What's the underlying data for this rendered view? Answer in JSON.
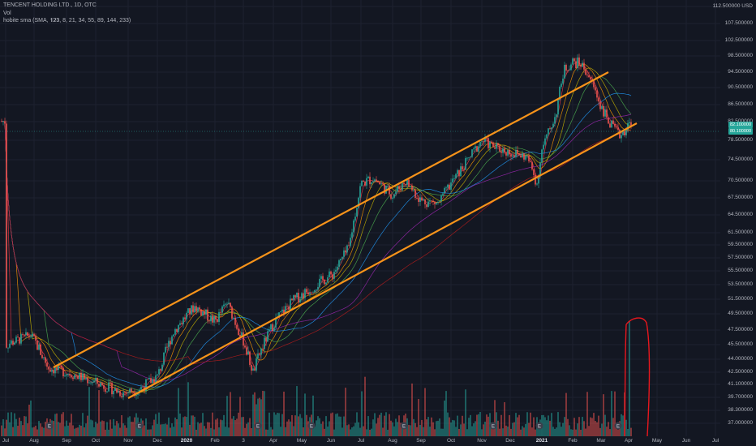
{
  "legend": {
    "symbol_line": "TENCENT HOLDING LTD., 1D, OTC",
    "vol_label": "Vol",
    "indicator_line": "hobite sma (SMA, 𝟏𝟐𝟑, 8, 21, 34, 55, 89, 144, 233)"
  },
  "axis": {
    "currency": "USD",
    "y_ticks": [
      "112.500000",
      "107.500000",
      "102.500000",
      "98.500000",
      "94.500000",
      "90.500000",
      "86.500000",
      "82.500000",
      "78.500000",
      "74.500000",
      "70.500000",
      "67.500000",
      "64.500000",
      "61.500000",
      "59.500000",
      "57.500000",
      "55.500000",
      "53.500000",
      "51.500000",
      "49.500000",
      "47.500000",
      "45.500000",
      "44.000000",
      "42.500000",
      "41.100000",
      "39.700000",
      "38.300000",
      "37.000000"
    ],
    "x_ticks": [
      "Jul",
      "Aug",
      "Sep",
      "Oct",
      "Nov",
      "Dec",
      "2020",
      "Feb",
      "3",
      "Apr",
      "May",
      "Jun",
      "Jul",
      "Aug",
      "Sep",
      "Oct",
      "Nov",
      "Dec",
      "2021",
      "Feb",
      "Mar",
      "Apr",
      "May",
      "Jun",
      "Jul"
    ]
  },
  "price_tags": [
    "82.100000",
    "80.100000"
  ],
  "colors": {
    "background": "#131722",
    "up_candle": "#26a69a",
    "down_candle": "#ef5350",
    "channel": "#f7931a",
    "annotation": "#e8171d",
    "ma_colors": [
      "#f23645",
      "#ff9800",
      "#c8b400",
      "#4caf50",
      "#2196f3",
      "#9c27b0",
      "#b71c1c"
    ]
  },
  "chart_data": {
    "type": "candlestick",
    "title": "TENCENT HOLDING LTD., 1D, OTC",
    "ylim": [
      37,
      112.5
    ],
    "scale": "log",
    "anchors": [
      {
        "x": "Jul",
        "y": 45.5
      },
      {
        "x": "Aug",
        "y": 46.5
      },
      {
        "x": "Sep",
        "y": 42.5
      },
      {
        "x": "Oct",
        "y": 41.5
      },
      {
        "x": "Nov",
        "y": 40.5
      },
      {
        "x": "Dec",
        "y": 42.0
      },
      {
        "x": "2020",
        "y": 48.0
      },
      {
        "x": "Feb",
        "y": 50.0
      },
      {
        "x": "3",
        "y": 46.5
      },
      {
        "x": "Apr",
        "y": 48.5
      },
      {
        "x": "May",
        "y": 52.0
      },
      {
        "x": "Jun",
        "y": 57.0
      },
      {
        "x": "Jul",
        "y": 70.0
      },
      {
        "x": "Aug",
        "y": 68.0
      },
      {
        "x": "Sep",
        "y": 66.0
      },
      {
        "x": "Oct",
        "y": 72.0
      },
      {
        "x": "Nov",
        "y": 78.0
      },
      {
        "x": "Dec",
        "y": 75.0
      },
      {
        "x": "2021",
        "y": 77.0
      },
      {
        "x": "Feb",
        "y": 97.0
      },
      {
        "x": "Mar",
        "y": 84.0
      },
      {
        "x": "Apr",
        "y": 80.1
      }
    ],
    "channel_upper": [
      {
        "x": "Sep",
        "y": 44.0
      },
      {
        "x": "Mar",
        "y": 94.5
      }
    ],
    "channel_lower": [
      {
        "x": "Nov",
        "y": 39.8
      },
      {
        "x": "Apr",
        "y": 81.0
      }
    ],
    "moving_averages": [
      8,
      21,
      34,
      55,
      89,
      144,
      233
    ],
    "last_price": 80.1,
    "grid": true
  }
}
